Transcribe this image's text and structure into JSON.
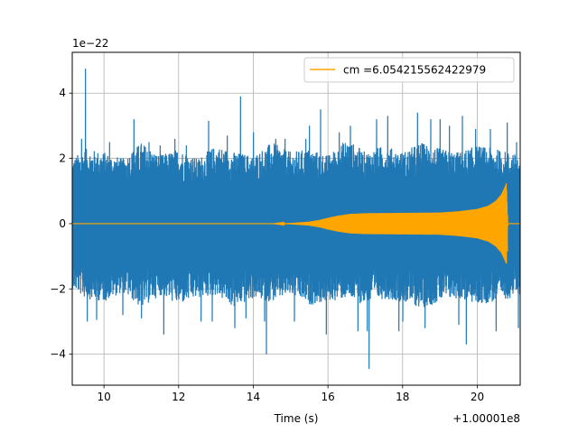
{
  "chart_data": {
    "type": "line",
    "title": "",
    "xlabel": "Time (s)",
    "ylabel": "",
    "x_offset_label": "+1.00001e8",
    "y_scale_label": "1e−22",
    "xlim": [
      9.15,
      21.15
    ],
    "ylim": [
      -4.95,
      5.25
    ],
    "x_ticks": [
      10,
      12,
      14,
      16,
      18,
      20
    ],
    "x_tick_labels": [
      "10",
      "12",
      "14",
      "16",
      "18",
      "20"
    ],
    "y_ticks": [
      -4,
      -2,
      0,
      2,
      4
    ],
    "y_tick_labels": [
      "−4",
      "−2",
      "0",
      "2",
      "4"
    ],
    "grid": true,
    "legend": {
      "placement": "top-right",
      "entries": [
        "cm =6.054215562422979"
      ]
    },
    "series": [
      {
        "role": "noise",
        "color": "#1f77b4",
        "typical_amplitude": 1.9,
        "band_values": [
          [
            9.15,
            2.0,
            -2.0
          ],
          [
            9.5,
            2.3,
            -2.3
          ],
          [
            10.0,
            2.2,
            -2.4
          ],
          [
            10.5,
            2.0,
            -2.1
          ],
          [
            11.0,
            2.5,
            -2.6
          ],
          [
            11.5,
            2.1,
            -2.2
          ],
          [
            12.0,
            2.3,
            -2.5
          ],
          [
            12.5,
            2.0,
            -2.3
          ],
          [
            13.0,
            2.4,
            -2.2
          ],
          [
            13.5,
            2.2,
            -2.6
          ],
          [
            14.0,
            2.1,
            -2.3
          ],
          [
            14.5,
            2.5,
            -2.4
          ],
          [
            15.0,
            2.2,
            -2.2
          ],
          [
            15.5,
            2.3,
            -2.5
          ],
          [
            16.0,
            2.1,
            -2.4
          ],
          [
            16.5,
            2.6,
            -2.3
          ],
          [
            17.0,
            2.2,
            -2.5
          ],
          [
            17.5,
            2.4,
            -2.3
          ],
          [
            18.0,
            2.2,
            -2.4
          ],
          [
            18.5,
            2.5,
            -2.6
          ],
          [
            19.0,
            2.3,
            -2.4
          ],
          [
            19.5,
            2.2,
            -2.3
          ],
          [
            20.0,
            2.4,
            -2.5
          ],
          [
            20.5,
            2.3,
            -2.4
          ],
          [
            21.15,
            2.1,
            -2.2
          ]
        ],
        "spikes": [
          [
            9.4,
            2.6
          ],
          [
            9.5,
            4.75
          ],
          [
            9.55,
            -3.0
          ],
          [
            9.8,
            -2.95
          ],
          [
            10.15,
            2.5
          ],
          [
            10.5,
            -2.8
          ],
          [
            10.8,
            3.2
          ],
          [
            11.0,
            -2.9
          ],
          [
            11.2,
            2.5
          ],
          [
            11.5,
            2.4
          ],
          [
            11.6,
            -3.4
          ],
          [
            11.9,
            2.6
          ],
          [
            12.2,
            2.4
          ],
          [
            12.6,
            -3.0
          ],
          [
            12.8,
            3.15
          ],
          [
            12.9,
            -3.0
          ],
          [
            13.3,
            2.7
          ],
          [
            13.5,
            -3.2
          ],
          [
            13.65,
            3.9
          ],
          [
            13.8,
            -2.9
          ],
          [
            14.0,
            2.8
          ],
          [
            14.3,
            -3.0
          ],
          [
            14.35,
            -4.0
          ],
          [
            14.6,
            2.6
          ],
          [
            14.85,
            2.6
          ],
          [
            15.1,
            -3.0
          ],
          [
            15.4,
            2.6
          ],
          [
            15.5,
            3.0
          ],
          [
            15.8,
            3.5
          ],
          [
            15.95,
            -3.4
          ],
          [
            16.3,
            2.8
          ],
          [
            16.6,
            3.0
          ],
          [
            16.8,
            -3.3
          ],
          [
            17.05,
            -3.3
          ],
          [
            17.1,
            -4.45
          ],
          [
            17.3,
            3.2
          ],
          [
            17.6,
            3.3
          ],
          [
            17.9,
            -3.3
          ],
          [
            18.0,
            -3.0
          ],
          [
            18.4,
            3.4
          ],
          [
            18.6,
            -3.2
          ],
          [
            18.75,
            3.2
          ],
          [
            19.0,
            3.2
          ],
          [
            19.25,
            3.0
          ],
          [
            19.5,
            -3.1
          ],
          [
            19.6,
            3.3
          ],
          [
            19.7,
            -3.7
          ],
          [
            19.95,
            2.9
          ],
          [
            20.35,
            2.9
          ],
          [
            20.5,
            -3.3
          ],
          [
            20.8,
            3.1
          ],
          [
            20.95,
            2.1
          ],
          [
            21.05,
            2.5
          ],
          [
            21.1,
            -3.2
          ]
        ]
      },
      {
        "name": "cm =6.054215562422979",
        "role": "chirp",
        "color": "#ffa500",
        "amplitude_envelope": [
          [
            9.15,
            0.0
          ],
          [
            14.5,
            0.0
          ],
          [
            15.0,
            0.02
          ],
          [
            15.5,
            0.06
          ],
          [
            15.8,
            0.12
          ],
          [
            16.0,
            0.18
          ],
          [
            16.3,
            0.25
          ],
          [
            16.6,
            0.3
          ],
          [
            17.0,
            0.32
          ],
          [
            18.0,
            0.33
          ],
          [
            19.0,
            0.34
          ],
          [
            19.5,
            0.38
          ],
          [
            20.0,
            0.45
          ],
          [
            20.3,
            0.55
          ],
          [
            20.5,
            0.7
          ],
          [
            20.65,
            0.9
          ],
          [
            20.75,
            1.15
          ],
          [
            20.78,
            1.25
          ],
          [
            20.82,
            0.0
          ],
          [
            21.15,
            0.0
          ]
        ]
      }
    ]
  }
}
